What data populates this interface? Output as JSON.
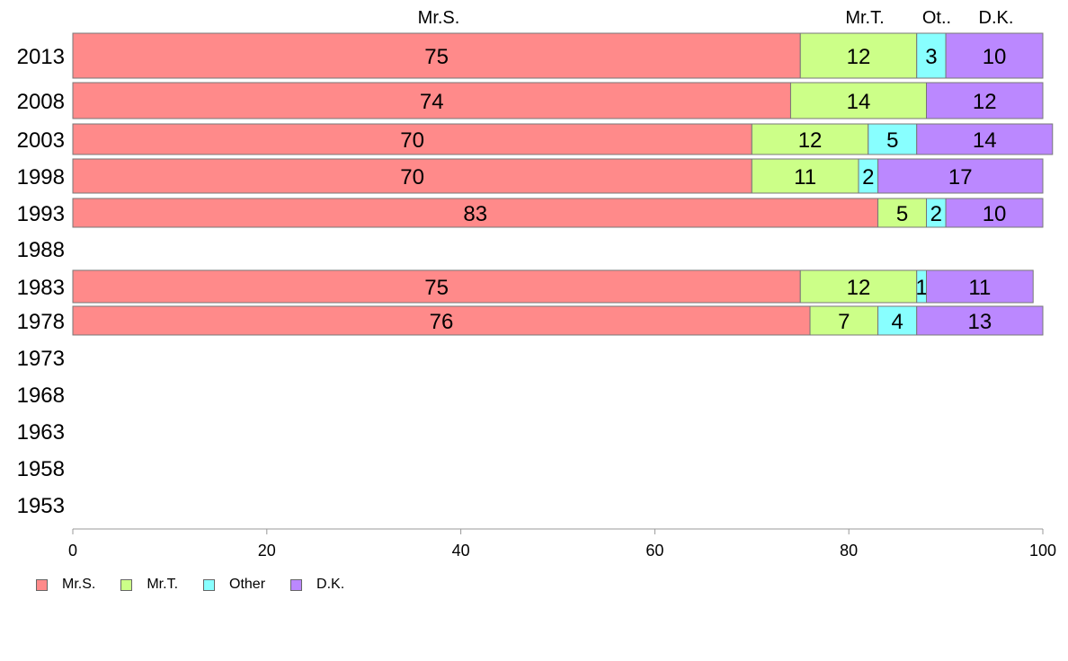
{
  "chart_data": {
    "type": "bar",
    "orientation": "horizontal",
    "stacked": true,
    "categories": [
      "2013",
      "2008",
      "2003",
      "1998",
      "1993",
      "1988",
      "1983",
      "1978",
      "1973",
      "1968",
      "1963",
      "1958",
      "1953"
    ],
    "column_headers": [
      "Mr.S.",
      "Mr.T.",
      "Ot..",
      "D.K."
    ],
    "series": [
      {
        "name": "Mr.S.",
        "color": "#ff8a8a",
        "values": [
          75,
          74,
          70,
          70,
          83,
          null,
          75,
          76,
          null,
          null,
          null,
          null,
          null
        ]
      },
      {
        "name": "Mr.T.",
        "color": "#ccff88",
        "values": [
          12,
          14,
          12,
          11,
          5,
          null,
          12,
          7,
          null,
          null,
          null,
          null,
          null
        ]
      },
      {
        "name": "Other",
        "color": "#88ffff",
        "values": [
          3,
          0,
          5,
          2,
          2,
          null,
          1,
          4,
          null,
          null,
          null,
          null,
          null
        ]
      },
      {
        "name": "D.K.",
        "color": "#bb88ff",
        "values": [
          10,
          12,
          14,
          17,
          10,
          null,
          11,
          13,
          null,
          null,
          null,
          null,
          null
        ]
      }
    ],
    "xlim": [
      0,
      100
    ],
    "xticks": [
      0,
      20,
      40,
      60,
      80,
      100
    ],
    "legend_position": "bottom-left",
    "grid": false
  }
}
